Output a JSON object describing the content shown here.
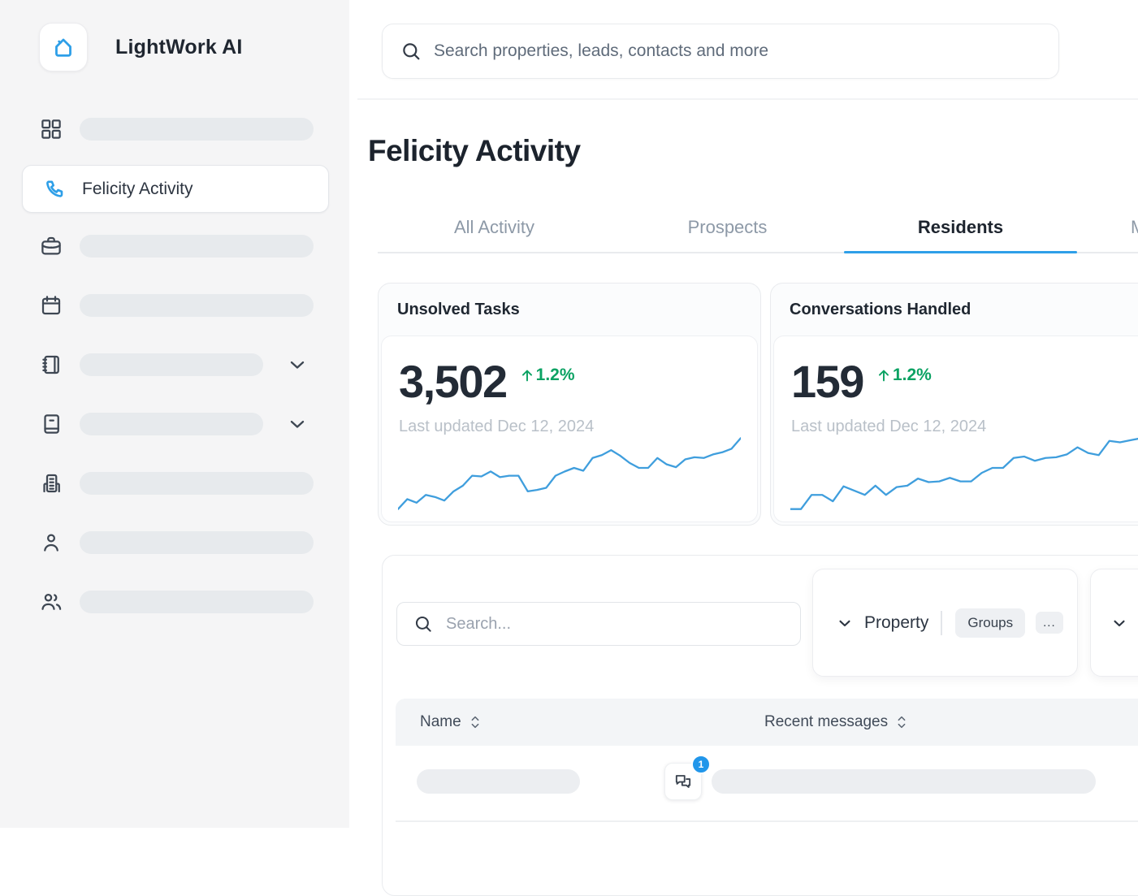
{
  "app": {
    "title": "LightWork AI"
  },
  "colors": {
    "accent": "#2E9FE8",
    "green": "#0BA263",
    "chart_line": "#3F9EDD",
    "badge": "#2196EA"
  },
  "sidebar": {
    "logo_icon": "home-icon",
    "active_item": {
      "label": "Felicity Activity",
      "icon": "phone-icon"
    },
    "nav_icons": [
      "dashboard-grid-icon",
      "phone-icon",
      "briefcase-icon",
      "calendar-icon",
      "notebook-icon",
      "book-icon",
      "building-icon",
      "person-icon",
      "people-icon"
    ]
  },
  "topbar": {
    "search_placeholder": "Search properties, leads, contacts and more"
  },
  "page": {
    "title": "Felicity Activity"
  },
  "tabs": [
    {
      "label": "All Activity",
      "active": false
    },
    {
      "label": "Prospects",
      "active": false
    },
    {
      "label": "Residents",
      "active": true
    },
    {
      "label": "M",
      "active": false,
      "truncated": true
    }
  ],
  "stats": [
    {
      "title": "Unsolved Tasks",
      "value": "3,502",
      "delta": "1.2%",
      "delta_direction": "up",
      "updated": "Last updated Dec 12, 2024"
    },
    {
      "title": "Conversations Handled",
      "value": "159",
      "delta": "1.2%",
      "delta_direction": "up",
      "updated": "Last updated Dec 12, 2024"
    }
  ],
  "chart_data": [
    {
      "type": "line",
      "title": "Unsolved Tasks trend sparkline",
      "legend": false,
      "axes_visible": false,
      "ylim": [
        0,
        100
      ],
      "series": [
        {
          "name": "Unsolved Tasks",
          "values": [
            0,
            14,
            9,
            20,
            17,
            12,
            25,
            33,
            47,
            46,
            53,
            45,
            47,
            47,
            25,
            27,
            30,
            47,
            53,
            58,
            54,
            72,
            76,
            83,
            75,
            65,
            58,
            58,
            72,
            63,
            59,
            70,
            73,
            72,
            77,
            80,
            85,
            100
          ]
        }
      ]
    },
    {
      "type": "line",
      "title": "Conversations Handled trend sparkline",
      "legend": false,
      "axes_visible": false,
      "ylim": [
        0,
        100
      ],
      "series": [
        {
          "name": "Conversations Handled",
          "values": [
            0,
            0,
            20,
            20,
            11,
            32,
            26,
            20,
            33,
            20,
            31,
            33,
            43,
            38,
            39,
            44,
            39,
            39,
            51,
            58,
            58,
            72,
            74,
            68,
            72,
            73,
            77,
            87,
            79,
            76,
            96,
            94,
            97,
            100
          ]
        }
      ]
    }
  ],
  "filters": {
    "search_placeholder": "Search...",
    "property_label": "Property",
    "groups_label": "Groups",
    "more_label": "..."
  },
  "table": {
    "columns": [
      {
        "label": "Name",
        "sortable": true
      },
      {
        "label": "Recent messages",
        "sortable": true
      }
    ],
    "rows": [
      {
        "name": "",
        "message": "",
        "unread_count": "1"
      }
    ]
  }
}
